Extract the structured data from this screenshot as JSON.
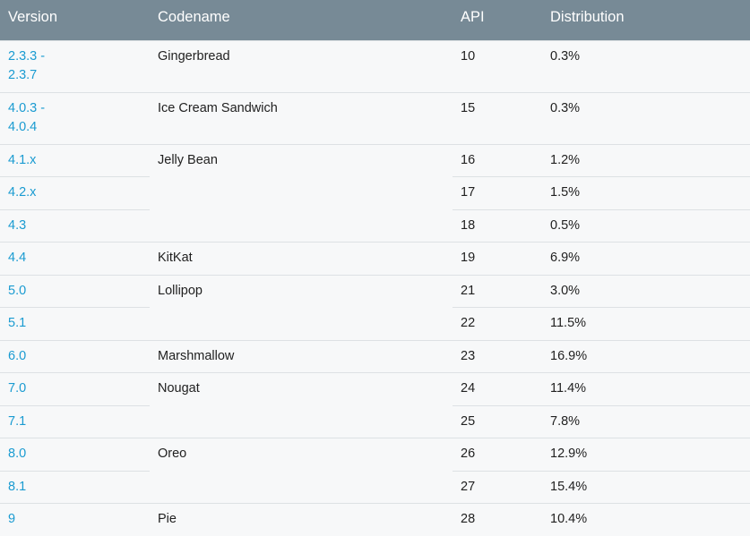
{
  "headers": {
    "version": "Version",
    "codename": "Codename",
    "api": "API",
    "distribution": "Distribution"
  },
  "rows": [
    {
      "version_line1": "2.3.3 -",
      "version_line2": "2.3.7",
      "codename": "Gingerbread",
      "api": "10",
      "distribution": "0.3%"
    },
    {
      "version_line1": "4.0.3 -",
      "version_line2": "4.0.4",
      "codename": "Ice Cream Sandwich",
      "api": "15",
      "distribution": "0.3%"
    },
    {
      "version": "4.1.x",
      "codename": "Jelly Bean",
      "api": "16",
      "distribution": "1.2%"
    },
    {
      "version": "4.2.x",
      "api": "17",
      "distribution": "1.5%"
    },
    {
      "version": "4.3",
      "api": "18",
      "distribution": "0.5%"
    },
    {
      "version": "4.4",
      "codename": "KitKat",
      "api": "19",
      "distribution": "6.9%"
    },
    {
      "version": "5.0",
      "codename": "Lollipop",
      "api": "21",
      "distribution": "3.0%"
    },
    {
      "version": "5.1",
      "api": "22",
      "distribution": "11.5%"
    },
    {
      "version": "6.0",
      "codename": "Marshmallow",
      "api": "23",
      "distribution": "16.9%"
    },
    {
      "version": "7.0",
      "codename": "Nougat",
      "api": "24",
      "distribution": "11.4%"
    },
    {
      "version": "7.1",
      "api": "25",
      "distribution": "7.8%"
    },
    {
      "version": "8.0",
      "codename": "Oreo",
      "api": "26",
      "distribution": "12.9%"
    },
    {
      "version": "8.1",
      "api": "27",
      "distribution": "15.4%"
    },
    {
      "version": "9",
      "codename": "Pie",
      "api": "28",
      "distribution": "10.4%"
    }
  ],
  "colors": {
    "header_bg": "#778a96",
    "link": "#1a9bd1",
    "row_bg": "#f7f8f9",
    "divider": "#dde1e4"
  }
}
